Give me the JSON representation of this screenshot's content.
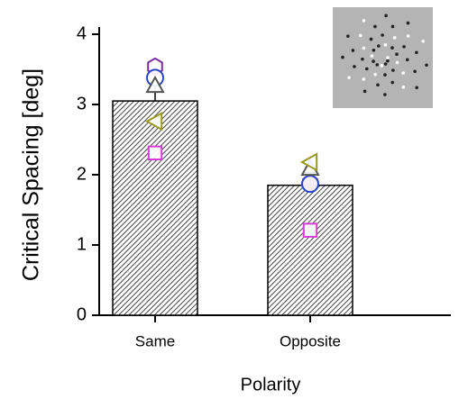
{
  "chart_data": {
    "type": "bar",
    "y_label": "Critical Spacing [deg]",
    "x_label": "Polarity",
    "categories": [
      "Same",
      "Opposite"
    ],
    "values": [
      3.05,
      1.85
    ],
    "errors": [
      0.22,
      0.18
    ],
    "color": "#555555",
    "ylim": [
      0,
      4
    ],
    "yticks": [
      0,
      1,
      2,
      3,
      4
    ],
    "markers": [
      {
        "marker": "hexagon",
        "color": "#7a2fa0",
        "values": [
          3.54,
          1.88
        ]
      },
      {
        "marker": "circle",
        "color": "#2b45c8",
        "values": [
          3.38,
          1.87
        ]
      },
      {
        "marker": "triangle-up",
        "color": "#555555",
        "values": [
          3.27,
          2.09
        ]
      },
      {
        "marker": "triangle-left",
        "color": "#9a9a20",
        "values": [
          2.76,
          2.18
        ]
      },
      {
        "marker": "square",
        "color": "#d63cd6",
        "values": [
          2.31,
          1.21
        ]
      }
    ]
  }
}
